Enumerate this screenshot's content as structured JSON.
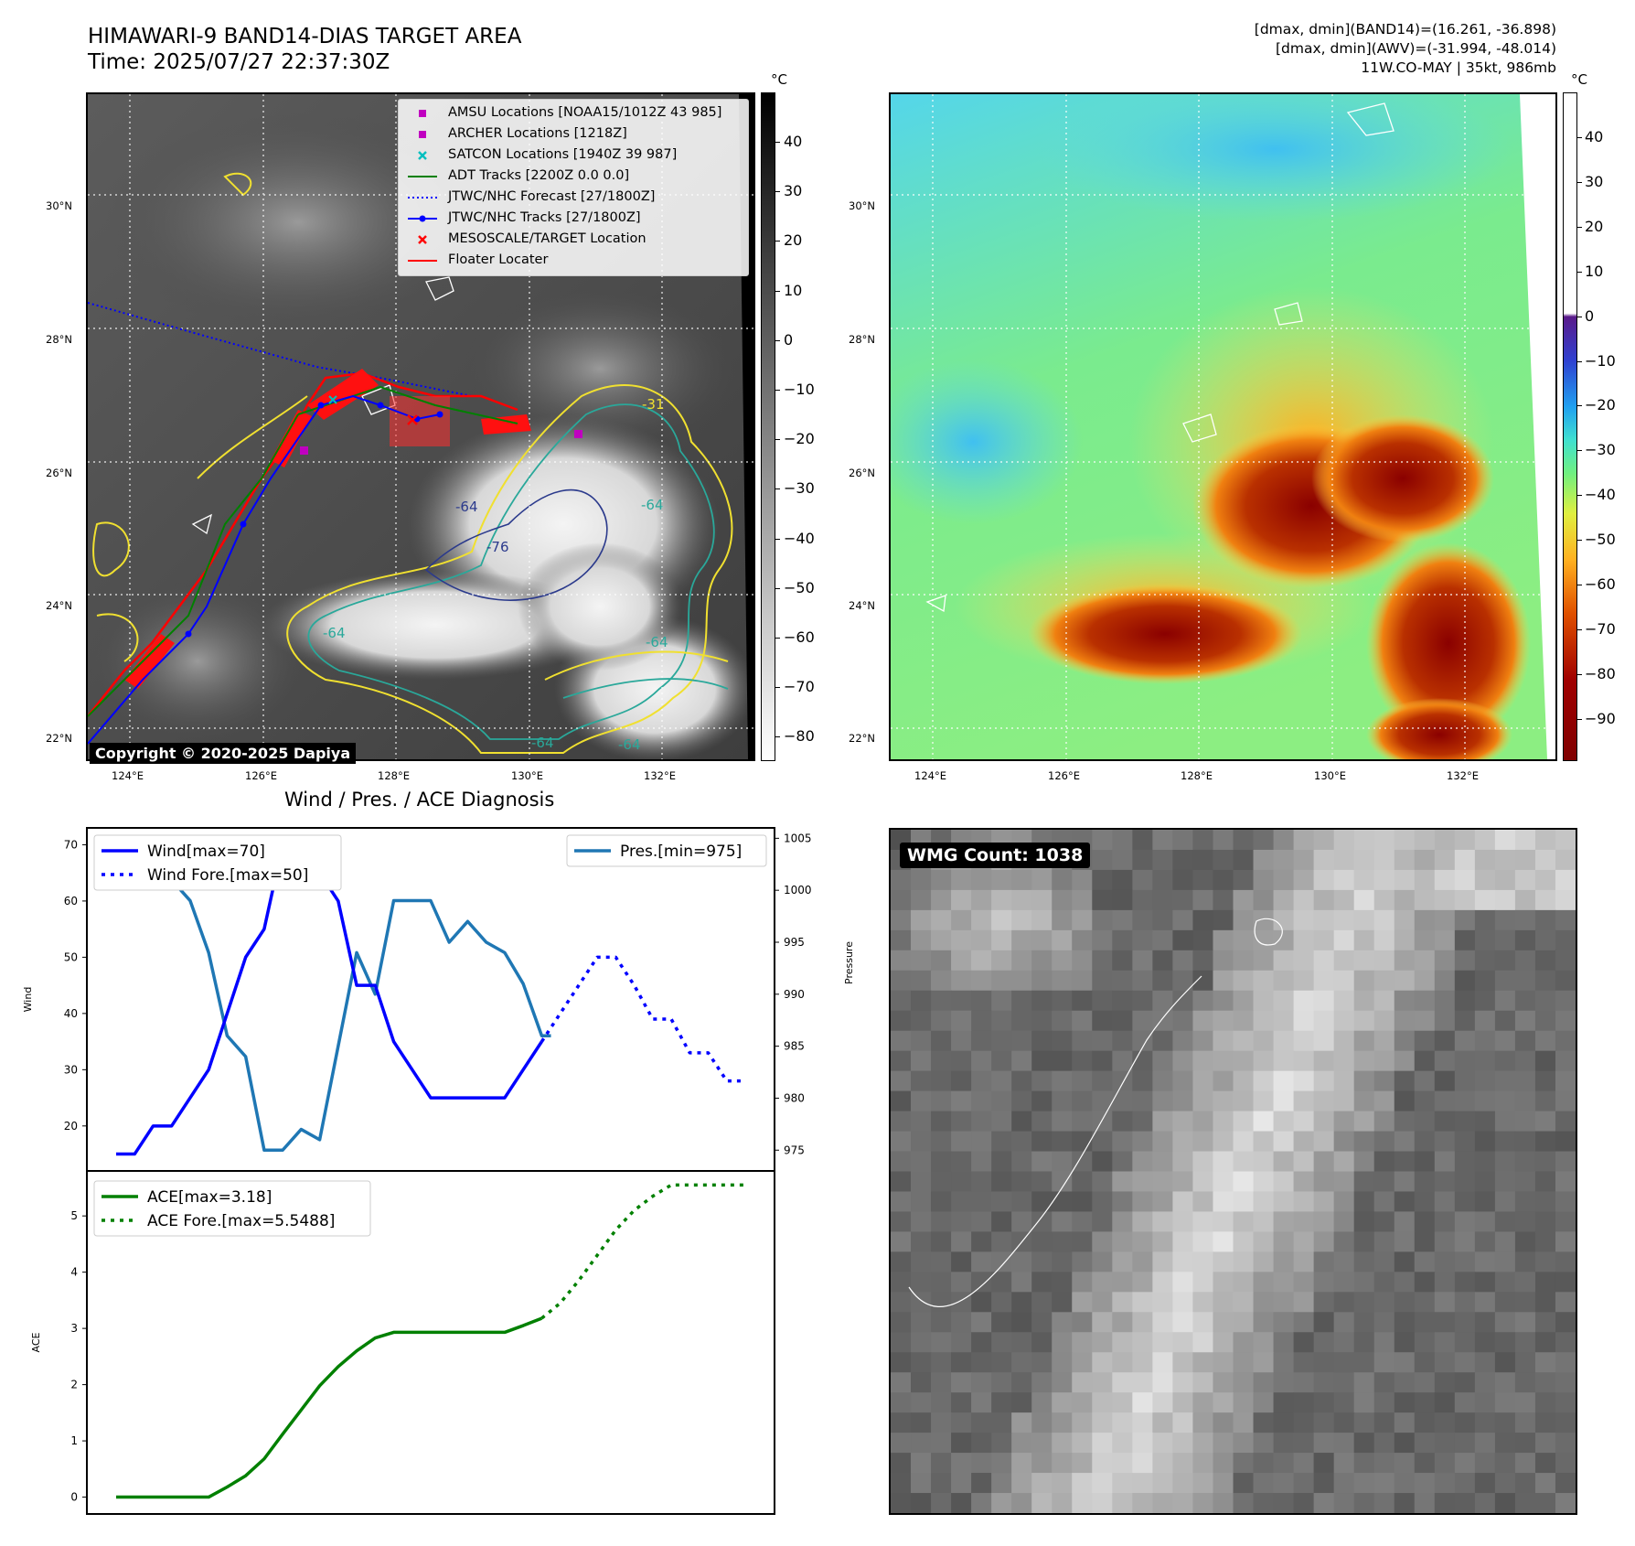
{
  "header": {
    "title_line1": "HIMAWARI-9 BAND14-DIAS TARGET AREA",
    "title_line2": "Time: 2025/07/27 22:37:30Z",
    "stats_line1": "[dmax, dmin](BAND14)=(16.261, -36.898)",
    "stats_line2": "[dmax, dmin](AWV)=(-31.994, -48.014)",
    "stats_line3": "11W.CO-MAY | 35kt, 986mb"
  },
  "map_axes": {
    "lat_labels": [
      "30°N",
      "28°N",
      "26°N",
      "24°N",
      "22°N"
    ],
    "lon_labels": [
      "124°E",
      "126°E",
      "128°E",
      "130°E",
      "132°E"
    ]
  },
  "ir_panel": {
    "colorbar_unit": "°C",
    "colorbar_ticks": [
      "40",
      "30",
      "20",
      "10",
      "0",
      "−10",
      "−20",
      "−30",
      "−40",
      "−50",
      "−60",
      "−70",
      "−80"
    ],
    "contour_labels": [
      "-31",
      "-64",
      "-76",
      "-64",
      "-64",
      "-64",
      "-64",
      "-64"
    ],
    "copyright": "Copyright © 2020-2025 Dapiya",
    "legend": [
      {
        "label": "AMSU Locations [NOAA15/1012Z 43 985]",
        "symbol": "square",
        "color": "#c000c0"
      },
      {
        "label": "ARCHER Locations [1218Z]",
        "symbol": "square",
        "color": "#c000c0"
      },
      {
        "label": "SATCON Locations [1940Z 39 987]",
        "symbol": "x",
        "color": "#00bfbf"
      },
      {
        "label": "ADT Tracks [2200Z 0.0 0.0]",
        "symbol": "line",
        "color": "#008000"
      },
      {
        "label": "JTWC/NHC Forecast [27/1800Z]",
        "symbol": "dotted",
        "color": "#0000ff"
      },
      {
        "label": "JTWC/NHC Tracks [27/1800Z]",
        "symbol": "line-dot",
        "color": "#0000ff"
      },
      {
        "label": "MESOSCALE/TARGET Location",
        "symbol": "x",
        "color": "#ff0000"
      },
      {
        "label": "Floater Locater",
        "symbol": "line",
        "color": "#ff0000"
      }
    ]
  },
  "color_panel": {
    "colorbar_unit": "°C",
    "colorbar_ticks": [
      "40",
      "30",
      "20",
      "10",
      "0",
      "−10",
      "−20",
      "−30",
      "−40",
      "−50",
      "−60",
      "−70",
      "−80",
      "−90"
    ]
  },
  "wmg_panel": {
    "label": "WMG Count: 1038"
  },
  "chart_data": [
    {
      "type": "line",
      "title": "Wind / Pres. / ACE Diagnosis",
      "ylabel": "Wind",
      "ylabel_right": "Pressure",
      "ylim": [
        12,
        73
      ],
      "ylim_right": [
        973,
        1006
      ],
      "yticks": [
        20,
        30,
        40,
        50,
        60,
        70
      ],
      "yticks_right": [
        975,
        980,
        985,
        990,
        995,
        1000,
        1005
      ],
      "x_range": [
        0,
        34
      ],
      "series": [
        {
          "name": "Wind[max=70]",
          "axis": "left",
          "style": "solid",
          "color": "#0000ff",
          "x": [
            0,
            1,
            2,
            3,
            4,
            5,
            6,
            7,
            8,
            9,
            10,
            11,
            12,
            13,
            14,
            15,
            16,
            17,
            18,
            19,
            20,
            21,
            22,
            23
          ],
          "values": [
            15,
            15,
            20,
            20,
            25,
            30,
            40,
            50,
            55,
            70,
            65,
            65,
            60,
            45,
            45,
            35,
            30,
            25,
            25,
            25,
            25,
            25,
            30,
            35
          ]
        },
        {
          "name": "Wind Fore.[max=50]",
          "axis": "left",
          "style": "dotted",
          "color": "#0000ff",
          "x": [
            23,
            24,
            25,
            26,
            27,
            28,
            29,
            30,
            31,
            32,
            33,
            34
          ],
          "values": [
            35,
            40,
            45,
            50,
            50,
            45,
            39,
            39,
            33,
            33,
            28,
            28
          ]
        },
        {
          "name": "Pres.[min=975]",
          "axis": "right",
          "style": "solid",
          "color": "#1f77b4",
          "x": [
            0,
            1,
            2,
            3,
            4,
            5,
            6,
            7,
            8,
            9,
            10,
            11,
            12,
            13,
            14,
            15,
            16,
            17,
            18,
            19,
            20,
            21,
            22,
            23,
            23.5
          ],
          "values": [
            1005,
            1005,
            1005,
            1001,
            999,
            994,
            986,
            984,
            975,
            975,
            977,
            976,
            985,
            994,
            990,
            999,
            999,
            999,
            995,
            997,
            995,
            994,
            991,
            986,
            986
          ]
        }
      ]
    },
    {
      "type": "line",
      "ylabel": "ACE",
      "ylim": [
        -0.3,
        5.8
      ],
      "yticks": [
        0,
        1,
        2,
        3,
        4,
        5
      ],
      "x_range": [
        0,
        34
      ],
      "series": [
        {
          "name": "ACE[max=3.18]",
          "style": "solid",
          "color": "#008000",
          "x": [
            0,
            1,
            2,
            3,
            4,
            5,
            6,
            7,
            8,
            9,
            10,
            11,
            12,
            13,
            14,
            15,
            16,
            17,
            18,
            19,
            20,
            21,
            22,
            23
          ],
          "values": [
            0,
            0,
            0,
            0,
            0,
            0,
            0.18,
            0.38,
            0.68,
            1.12,
            1.55,
            1.98,
            2.32,
            2.6,
            2.83,
            2.93,
            2.93,
            2.93,
            2.93,
            2.93,
            2.93,
            2.93,
            3.05,
            3.18
          ]
        },
        {
          "name": "ACE Fore.[max=5.5488]",
          "style": "dotted",
          "color": "#008000",
          "x": [
            23,
            24,
            25,
            26,
            27,
            28,
            29,
            30,
            31,
            32,
            33,
            34
          ],
          "values": [
            3.18,
            3.45,
            3.85,
            4.3,
            4.75,
            5.1,
            5.35,
            5.55,
            5.55,
            5.55,
            5.55,
            5.55
          ]
        }
      ]
    }
  ]
}
